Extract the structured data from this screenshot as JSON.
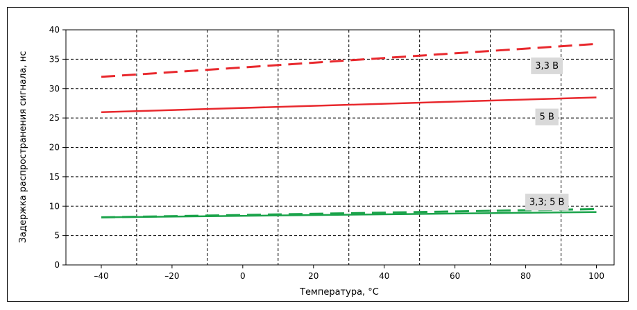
{
  "chart_data": {
    "type": "line",
    "title": "",
    "xlabel": "Температура, °C",
    "ylabel": "Задержка распространения сигнала, нс",
    "xlim": [
      -50,
      105
    ],
    "ylim": [
      0,
      40
    ],
    "xticks": [
      -40,
      -20,
      0,
      20,
      40,
      60,
      80,
      100
    ],
    "xtick_labels": [
      "–40",
      "–20",
      "0",
      "20",
      "40",
      "60",
      "80",
      "100"
    ],
    "yticks": [
      0,
      5,
      10,
      15,
      20,
      25,
      30,
      35,
      40
    ],
    "ytick_labels": [
      "0",
      "5",
      "10",
      "15",
      "20",
      "25",
      "30",
      "35",
      "40"
    ],
    "x_gridlines": [
      -30,
      -10,
      10,
      30,
      50,
      70,
      90
    ],
    "grid": true,
    "series": [
      {
        "name": "3,3 В",
        "x": [
          -40,
          100
        ],
        "values": [
          32.0,
          37.6
        ],
        "color": "#e8282d",
        "dash": "dashed"
      },
      {
        "name": "5 В",
        "x": [
          -40,
          100
        ],
        "values": [
          26.0,
          28.5
        ],
        "color": "#e8282d",
        "dash": "solid"
      },
      {
        "x": [
          -40,
          100
        ],
        "values": [
          8.1,
          9.5
        ],
        "color": "#1aa34a",
        "dash": "dashed"
      },
      {
        "x": [
          -40,
          100
        ],
        "values": [
          8.1,
          9.0
        ],
        "color": "#1aa34a",
        "dash": "solid"
      }
    ],
    "annotations": [
      {
        "text": "3,3 В",
        "x": 86,
        "y": 34
      },
      {
        "text": "5 В",
        "x": 86,
        "y": 25.3
      },
      {
        "text": "3,3; 5 В",
        "x": 86,
        "y": 10.8
      }
    ]
  }
}
